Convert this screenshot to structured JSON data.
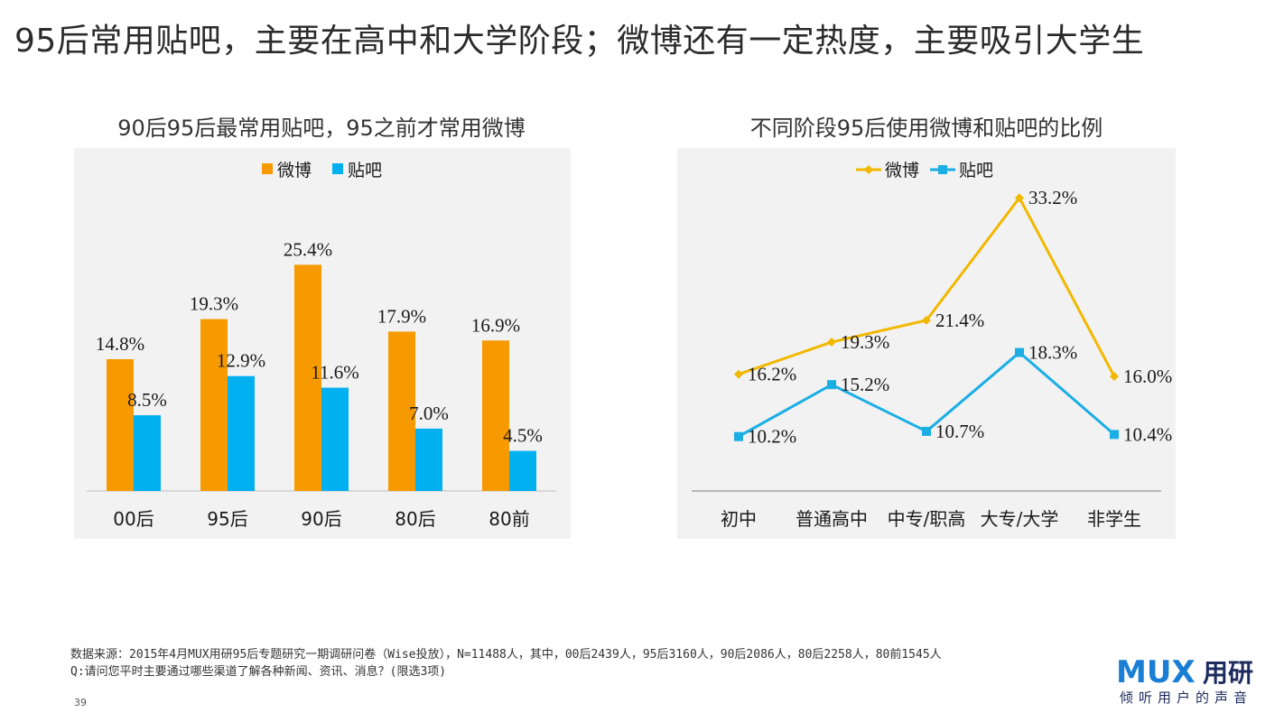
{
  "slide": {
    "title": "95后常用贴吧，主要在高中和大学阶段；微博还有一定热度，主要吸引大学生",
    "page_number": "39",
    "footer_line1": "数据来源：2015年4月MUX用研95后专题研究一期调研问卷（Wise投放），N=11488人，其中，00后2439人，95后3160人，90后2086人，80后2258人，80前1545人",
    "footer_line2": "Q:请问您平时主要通过哪些渠道了解各种新闻、资讯、消息？(限选3项)",
    "logo_mark": "MUX",
    "logo_text": "用研",
    "logo_slogan": "倾听用户的声音"
  },
  "colors": {
    "weibo_bar": "#f79a00",
    "tieba_bar": "#00b0f0",
    "weibo_line": "#f2b800",
    "tieba_line": "#1aaee5",
    "panel_bg": "#f2f2f2"
  },
  "chart_data": [
    {
      "type": "bar",
      "title": "90后95后最常用贴吧，95之前才常用微博",
      "categories": [
        "00后",
        "95后",
        "90后",
        "80后",
        "80前"
      ],
      "series": [
        {
          "name": "微博",
          "values": [
            14.8,
            19.3,
            25.4,
            17.9,
            16.9
          ],
          "labels": [
            "14.8%",
            "19.3%",
            "25.4%",
            "17.9%",
            "16.9%"
          ]
        },
        {
          "name": "贴吧",
          "values": [
            8.5,
            12.9,
            11.6,
            7.0,
            4.5
          ],
          "labels": [
            "8.5%",
            "12.9%",
            "11.6%",
            "7.0%",
            "4.5%"
          ]
        }
      ],
      "legend": "top-center",
      "ylim": [
        0,
        30
      ],
      "grid": false
    },
    {
      "type": "line",
      "title": "不同阶段95后使用微博和贴吧的比例",
      "categories": [
        "初中",
        "普通高中",
        "中专/职高",
        "大专/大学",
        "非学生"
      ],
      "series": [
        {
          "name": "微博",
          "marker": "diamond",
          "values": [
            16.2,
            19.3,
            21.4,
            33.2,
            16.0
          ],
          "labels": [
            "16.2%",
            "19.3%",
            "21.4%",
            "33.2%",
            "16.0%"
          ]
        },
        {
          "name": "贴吧",
          "marker": "square",
          "values": [
            10.2,
            15.2,
            10.7,
            18.3,
            10.4
          ],
          "labels": [
            "10.2%",
            "15.2%",
            "10.7%",
            "18.3%",
            "10.4%"
          ]
        }
      ],
      "legend": "top-center",
      "ylim": [
        0,
        35
      ],
      "grid": false
    }
  ]
}
